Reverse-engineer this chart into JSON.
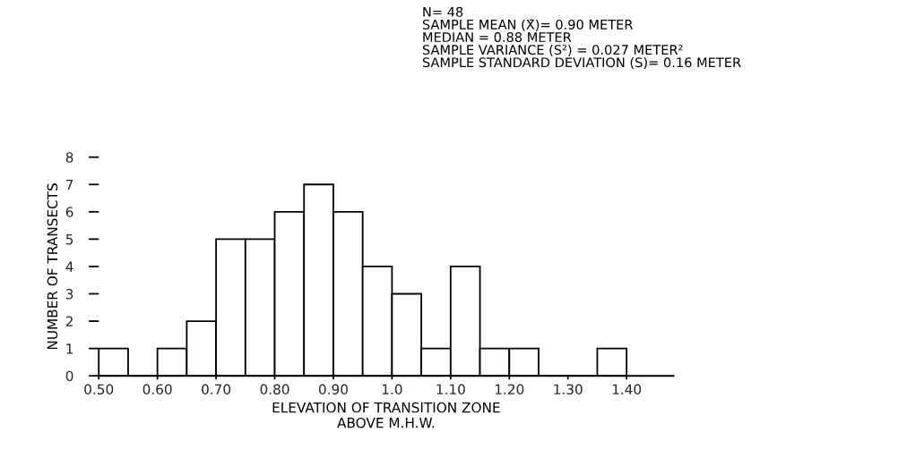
{
  "chart_data": {
    "type": "histogram",
    "bins": [
      0.5,
      0.55,
      0.6,
      0.65,
      0.7,
      0.75,
      0.8,
      0.85,
      0.9,
      0.95,
      1.0,
      1.05,
      1.1,
      1.15,
      1.2,
      1.25,
      1.3,
      1.35,
      1.4
    ],
    "values": [
      1,
      0,
      1,
      2,
      5,
      5,
      6,
      7,
      6,
      4,
      3,
      1,
      4,
      1,
      1,
      0,
      0,
      1
    ],
    "color": "#ffffff",
    "xlabel": "ELEVATION OF TRANSITION ZONE\nABOVE M.H.W.",
    "ylabel": "NUMBER OF TRANSECTS",
    "xlim": [
      0.5,
      1.48
    ],
    "xticks": [
      {
        "value": 0.5,
        "label": "0.50"
      },
      {
        "value": 0.6,
        "label": "0.60"
      },
      {
        "value": 0.7,
        "label": "0.70"
      },
      {
        "value": 0.8,
        "label": "0.80"
      },
      {
        "value": 0.9,
        "label": "0.90"
      },
      {
        "value": 1.0,
        "label": "1.0"
      },
      {
        "value": 1.1,
        "label": "1.10"
      },
      {
        "value": 1.2,
        "label": "1.20"
      },
      {
        "value": 1.3,
        "label": "1.30"
      },
      {
        "value": 1.4,
        "label": "1.40"
      }
    ],
    "ylim": [
      0,
      8
    ],
    "yticks": [
      0,
      1,
      2,
      3,
      4,
      5,
      6,
      7,
      8
    ],
    "grid": false,
    "annotations": [
      "N= 48\nSAMPLE MEAN (X̄)= 0.90 METER\nMEDIAN = 0.88 METER\nSAMPLE VARIANCE (S²) = 0.027 METER²\nSAMPLE STANDARD DEVIATION (S)= 0.16 METER"
    ]
  }
}
